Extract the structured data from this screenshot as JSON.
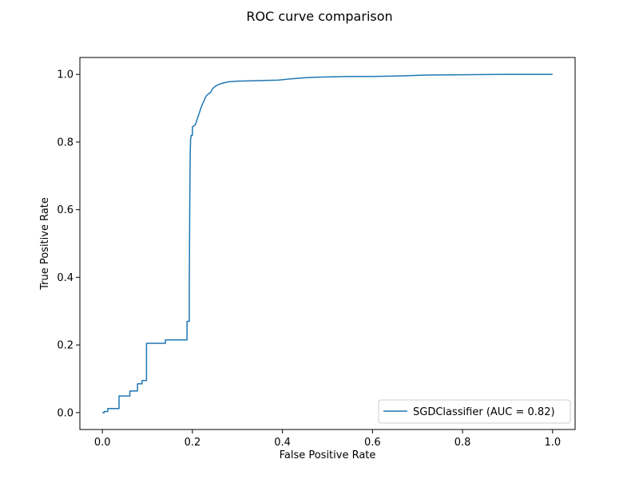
{
  "chart_data": {
    "type": "line",
    "title": "ROC curve comparison",
    "xlabel": "False Positive Rate",
    "ylabel": "True Positive Rate",
    "xlim": [
      -0.05,
      1.05
    ],
    "ylim": [
      -0.05,
      1.05
    ],
    "xticks": [
      0.0,
      0.2,
      0.4,
      0.6,
      0.8,
      1.0
    ],
    "xtick_labels": [
      "0.0",
      "0.2",
      "0.4",
      "0.6",
      "0.8",
      "1.0"
    ],
    "yticks": [
      0.0,
      0.2,
      0.4,
      0.6,
      0.8,
      1.0
    ],
    "ytick_labels": [
      "0.0",
      "0.2",
      "0.4",
      "0.6",
      "0.8",
      "1.0"
    ],
    "grid": false,
    "legend_position": "lower-right",
    "series": [
      {
        "name": "SGDClassifier (AUC = 0.82)",
        "color": "#1f77b4",
        "x": [
          0.0,
          0.004,
          0.004,
          0.012,
          0.012,
          0.037,
          0.037,
          0.061,
          0.061,
          0.078,
          0.078,
          0.088,
          0.088,
          0.098,
          0.098,
          0.14,
          0.14,
          0.188,
          0.188,
          0.193,
          0.193,
          0.194,
          0.195,
          0.196,
          0.197,
          0.197,
          0.2,
          0.2,
          0.206,
          0.21,
          0.215,
          0.22,
          0.225,
          0.23,
          0.235,
          0.24,
          0.245,
          0.25,
          0.255,
          0.26,
          0.27,
          0.28,
          0.3,
          0.33,
          0.36,
          0.39,
          0.42,
          0.45,
          0.48,
          0.52,
          0.55,
          0.6,
          0.65,
          0.72,
          0.8,
          0.9,
          1.0
        ],
        "y": [
          0.0,
          0.0,
          0.003,
          0.003,
          0.012,
          0.012,
          0.049,
          0.049,
          0.064,
          0.064,
          0.085,
          0.085,
          0.095,
          0.095,
          0.205,
          0.205,
          0.215,
          0.215,
          0.27,
          0.27,
          0.37,
          0.6,
          0.76,
          0.81,
          0.815,
          0.82,
          0.82,
          0.845,
          0.85,
          0.865,
          0.885,
          0.905,
          0.92,
          0.935,
          0.942,
          0.946,
          0.958,
          0.964,
          0.968,
          0.971,
          0.975,
          0.978,
          0.98,
          0.981,
          0.982,
          0.983,
          0.987,
          0.99,
          0.992,
          0.993,
          0.994,
          0.994,
          0.995,
          0.998,
          0.999,
          1.0,
          1.0
        ]
      }
    ]
  }
}
